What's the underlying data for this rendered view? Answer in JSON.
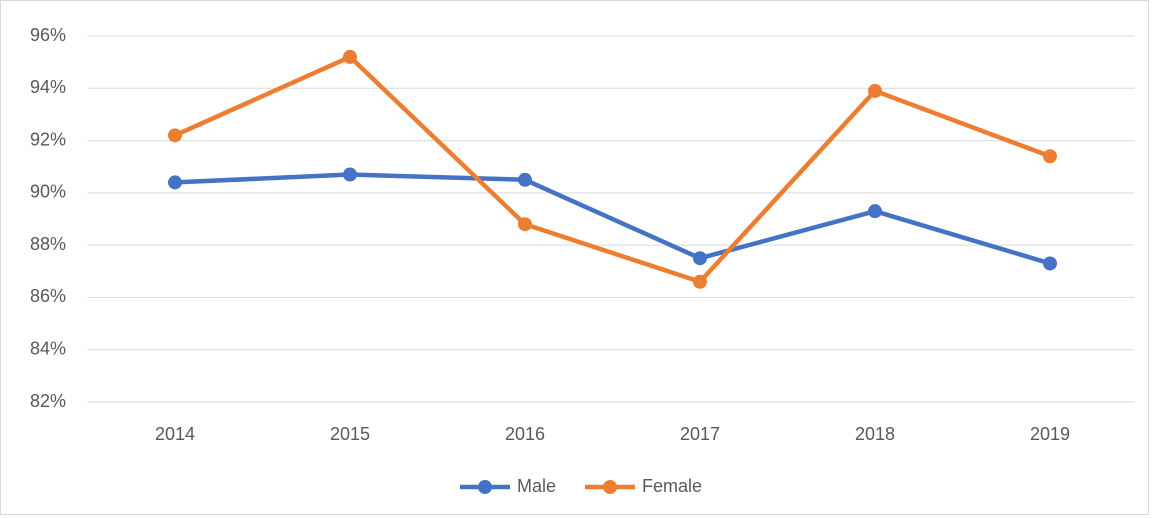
{
  "chart_data": {
    "type": "line",
    "categories": [
      "2014",
      "2015",
      "2016",
      "2017",
      "2018",
      "2019"
    ],
    "series": [
      {
        "name": "Male",
        "color": "#4472c4",
        "values": [
          90.4,
          90.7,
          90.5,
          87.5,
          89.3,
          87.3
        ]
      },
      {
        "name": "Female",
        "color": "#ed7d31",
        "values": [
          92.2,
          95.2,
          88.8,
          86.6,
          93.9,
          91.4
        ]
      }
    ],
    "ylim": [
      82,
      96
    ],
    "yticks": [
      {
        "value": 82,
        "label": "82%"
      },
      {
        "value": 84,
        "label": "84%"
      },
      {
        "value": 86,
        "label": "86%"
      },
      {
        "value": 88,
        "label": "88%"
      },
      {
        "value": 90,
        "label": "90%"
      },
      {
        "value": 92,
        "label": "92%"
      },
      {
        "value": 94,
        "label": "94%"
      },
      {
        "value": 96,
        "label": "96%"
      }
    ],
    "grid": true,
    "legend": "bottom"
  }
}
